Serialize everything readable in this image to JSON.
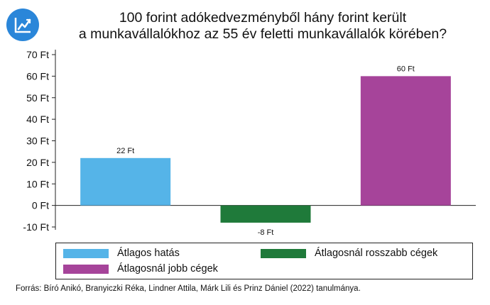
{
  "title_lines": [
    "100 forint adókedvezményből hány forint került",
    "a munkavállalókhoz az 55 év feletti munkavállalók körében?"
  ],
  "logo_icon": "chart-trend-icon",
  "source": "Forrás: Bíró Anikó, Branyiczki Réka, Lindner Attila, Márk Lili és Prinz Dániel (2022) tanulmánya.",
  "chart_data": {
    "type": "bar",
    "categories": [
      "Átlagos hatás",
      "Átlagosnál rosszabb cégek",
      "Átlagosnál jobb cégek"
    ],
    "values": [
      22,
      -8,
      60
    ],
    "value_labels": [
      "22 Ft",
      "-8 Ft",
      "60 Ft"
    ],
    "colors": [
      "#55b4e8",
      "#1f7a3a",
      "#a6449a"
    ],
    "ylim": [
      -10,
      70
    ],
    "yticks": [
      -10,
      0,
      10,
      20,
      30,
      40,
      50,
      60,
      70
    ],
    "ytick_labels": [
      "-10 Ft",
      "0 Ft",
      "10 Ft",
      "20 Ft",
      "30 Ft",
      "40 Ft",
      "50 Ft",
      "60 Ft",
      "70 Ft"
    ],
    "xlabel": "",
    "ylabel": "",
    "grid": false,
    "legend_position": "bottom",
    "legend": [
      {
        "label": "Átlagos hatás",
        "color": "#55b4e8"
      },
      {
        "label": "Átlagosnál rosszabb cégek",
        "color": "#1f7a3a"
      },
      {
        "label": "Átlagosnál jobb cégek",
        "color": "#a6449a"
      }
    ]
  }
}
